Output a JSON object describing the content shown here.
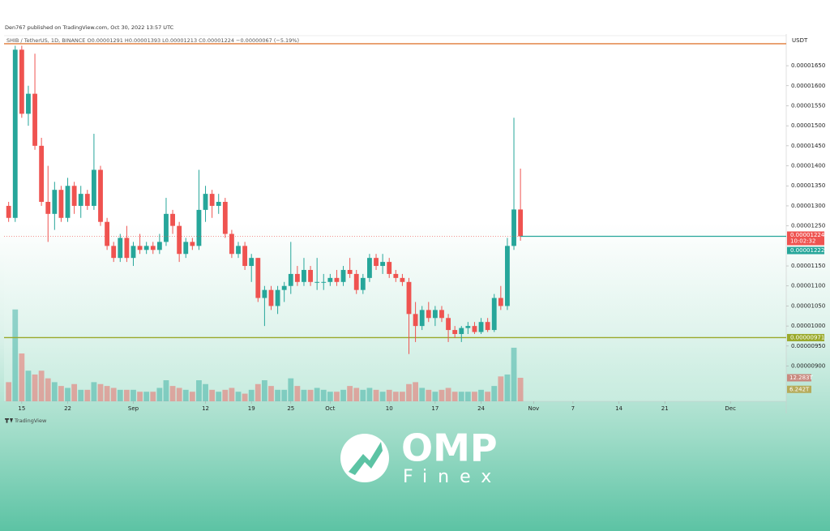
{
  "header": {
    "publisher": "Den767 published on TradingView.com, Oct 30, 2022 13:57 UTC",
    "legend": "SHIB / TetherUS, 1D, BINANCE  O0.00001291  H0.00001393  L0.00001213  C0.00001224  −0.00000067 (−5.19%)"
  },
  "chart_data": {
    "type": "candlestick",
    "currency": "USDT",
    "ylim": [
      8.12e-06,
      1.723e-05
    ],
    "xlim": [
      -0.7,
      118.5
    ],
    "yticks": [
      {
        "value": 1.65e-05,
        "label": "0.00001650"
      },
      {
        "value": 1.6e-05,
        "label": "0.00001600"
      },
      {
        "value": 1.55e-05,
        "label": "0.00001550"
      },
      {
        "value": 1.5e-05,
        "label": "0.00001500"
      },
      {
        "value": 1.45e-05,
        "label": "0.00001450"
      },
      {
        "value": 1.4e-05,
        "label": "0.00001400"
      },
      {
        "value": 1.35e-05,
        "label": "0.00001350"
      },
      {
        "value": 1.3e-05,
        "label": "0.00001300"
      },
      {
        "value": 1.25e-05,
        "label": "0.00001250"
      },
      {
        "value": 1.15e-05,
        "label": "0.00001150"
      },
      {
        "value": 1.1e-05,
        "label": "0.00001100"
      },
      {
        "value": 1.05e-05,
        "label": "0.00001050"
      },
      {
        "value": 1e-05,
        "label": "0.00001000"
      },
      {
        "value": 9.5e-06,
        "label": "0.00000950"
      },
      {
        "value": 9e-06,
        "label": "0.00000900"
      }
    ],
    "xticks": [
      {
        "value": 2,
        "label": "15"
      },
      {
        "value": 9,
        "label": "22"
      },
      {
        "value": 19,
        "label": "Sep"
      },
      {
        "value": 30,
        "label": "12"
      },
      {
        "value": 37,
        "label": "19"
      },
      {
        "value": 43,
        "label": "25"
      },
      {
        "value": 49,
        "label": "Oct"
      },
      {
        "value": 58,
        "label": "10"
      },
      {
        "value": 65,
        "label": "17"
      },
      {
        "value": 72,
        "label": "24"
      },
      {
        "value": 80,
        "label": "Nov"
      },
      {
        "value": 86,
        "label": "7"
      },
      {
        "value": 93,
        "label": "14"
      },
      {
        "value": 100,
        "label": "21"
      },
      {
        "value": 110,
        "label": "Dec"
      }
    ],
    "up_color": "#26a69a",
    "down_color": "#ef5350",
    "open": [
      1.3e-05,
      1.27e-05,
      1.69e-05,
      1.53e-05,
      1.58e-05,
      1.45e-05,
      1.31e-05,
      1.28e-05,
      1.34e-05,
      1.27e-05,
      1.35e-05,
      1.3e-05,
      1.33e-05,
      1.3e-05,
      1.39e-05,
      1.26e-05,
      1.2e-05,
      1.17e-05,
      1.22e-05,
      1.17e-05,
      1.2e-05,
      1.19e-05,
      1.2e-05,
      1.19e-05,
      1.21e-05,
      1.28e-05,
      1.25e-05,
      1.18e-05,
      1.21e-05,
      1.2e-05,
      1.29e-05,
      1.33e-05,
      1.3e-05,
      1.31e-05,
      1.23e-05,
      1.18e-05,
      1.2e-05,
      1.15e-05,
      1.17e-05,
      1.07e-05,
      1.09e-05,
      1.05e-05,
      1.09e-05,
      1.1e-05,
      1.13e-05,
      1.11e-05,
      1.14e-05,
      1.11e-05,
      1.11e-05,
      1.11e-05,
      1.12e-05,
      1.11e-05,
      1.14e-05,
      1.13e-05,
      1.09e-05,
      1.12e-05,
      1.17e-05,
      1.15e-05,
      1.16e-05,
      1.13e-05,
      1.12e-05,
      1.11e-05,
      1.03e-05,
      1e-05,
      1.04e-05,
      1.02e-05,
      1.04e-05,
      1.02e-05,
      9.9e-06,
      9.8e-06,
      9.95e-06,
      1e-05,
      9.85e-06,
      1.01e-05,
      9.9e-06,
      1.07e-05,
      1.05e-05,
      1.2e-05,
      1.291e-05
    ],
    "high": [
      1.31e-05,
      1.7e-05,
      1.7e-05,
      1.6e-05,
      1.68e-05,
      1.47e-05,
      1.4e-05,
      1.36e-05,
      1.35e-05,
      1.37e-05,
      1.36e-05,
      1.35e-05,
      1.34e-05,
      1.48e-05,
      1.4e-05,
      1.27e-05,
      1.21e-05,
      1.23e-05,
      1.25e-05,
      1.21e-05,
      1.23e-05,
      1.21e-05,
      1.21e-05,
      1.23e-05,
      1.32e-05,
      1.29e-05,
      1.26e-05,
      1.22e-05,
      1.22e-05,
      1.39e-05,
      1.35e-05,
      1.34e-05,
      1.33e-05,
      1.32e-05,
      1.24e-05,
      1.21e-05,
      1.21e-05,
      1.18e-05,
      1.17e-05,
      1.1e-05,
      1.1e-05,
      1.1e-05,
      1.11e-05,
      1.21e-05,
      1.15e-05,
      1.17e-05,
      1.15e-05,
      1.17e-05,
      1.13e-05,
      1.13e-05,
      1.14e-05,
      1.15e-05,
      1.17e-05,
      1.14e-05,
      1.13e-05,
      1.18e-05,
      1.18e-05,
      1.18e-05,
      1.17e-05,
      1.14e-05,
      1.13e-05,
      1.12e-05,
      1.06e-05,
      1.05e-05,
      1.06e-05,
      1.05e-05,
      1.05e-05,
      1.03e-05,
      1e-05,
      1e-05,
      1.01e-05,
      1.01e-05,
      1.02e-05,
      1.02e-05,
      1.08e-05,
      1.1e-05,
      1.22e-05,
      1.52e-05,
      1.393e-05
    ],
    "low": [
      1.26e-05,
      1.26e-05,
      1.52e-05,
      1.5e-05,
      1.44e-05,
      1.3e-05,
      1.21e-05,
      1.24e-05,
      1.26e-05,
      1.26e-05,
      1.28e-05,
      1.27e-05,
      1.29e-05,
      1.29e-05,
      1.25e-05,
      1.19e-05,
      1.16e-05,
      1.16e-05,
      1.16e-05,
      1.15e-05,
      1.18e-05,
      1.18e-05,
      1.18e-05,
      1.18e-05,
      1.2e-05,
      1.23e-05,
      1.16e-05,
      1.17e-05,
      1.19e-05,
      1.19e-05,
      1.26e-05,
      1.27e-05,
      1.28e-05,
      1.22e-05,
      1.17e-05,
      1.17e-05,
      1.14e-05,
      1.11e-05,
      1.06e-05,
      1e-05,
      1.04e-05,
      1.03e-05,
      1.06e-05,
      1.08e-05,
      1.1e-05,
      1.1e-05,
      1.1e-05,
      1.09e-05,
      1.09e-05,
      1.1e-05,
      1.1e-05,
      1.1e-05,
      1.12e-05,
      1.08e-05,
      1.08e-05,
      1.11e-05,
      1.14e-05,
      1.13e-05,
      1.12e-05,
      1.11e-05,
      1.1e-05,
      9.3e-06,
      9.6e-06,
      9.9e-06,
      1.01e-05,
      1e-05,
      1.01e-05,
      9.6e-06,
      9.7e-06,
      9.6e-06,
      9.8e-06,
      9.8e-06,
      9.8e-06,
      9.85e-06,
      9.85e-06,
      1.04e-05,
      1.04e-05,
      1.19e-05,
      1.213e-05
    ],
    "close": [
      1.27e-05,
      1.69e-05,
      1.53e-05,
      1.58e-05,
      1.45e-05,
      1.31e-05,
      1.28e-05,
      1.34e-05,
      1.27e-05,
      1.35e-05,
      1.3e-05,
      1.33e-05,
      1.3e-05,
      1.39e-05,
      1.26e-05,
      1.2e-05,
      1.17e-05,
      1.22e-05,
      1.17e-05,
      1.2e-05,
      1.19e-05,
      1.2e-05,
      1.19e-05,
      1.21e-05,
      1.28e-05,
      1.25e-05,
      1.18e-05,
      1.21e-05,
      1.2e-05,
      1.29e-05,
      1.33e-05,
      1.3e-05,
      1.31e-05,
      1.23e-05,
      1.18e-05,
      1.2e-05,
      1.15e-05,
      1.17e-05,
      1.07e-05,
      1.09e-05,
      1.05e-05,
      1.09e-05,
      1.1e-05,
      1.13e-05,
      1.11e-05,
      1.14e-05,
      1.11e-05,
      1.11e-05,
      1.11e-05,
      1.12e-05,
      1.11e-05,
      1.14e-05,
      1.13e-05,
      1.09e-05,
      1.12e-05,
      1.17e-05,
      1.15e-05,
      1.16e-05,
      1.13e-05,
      1.12e-05,
      1.11e-05,
      1.03e-05,
      1e-05,
      1.04e-05,
      1.02e-05,
      1.04e-05,
      1.02e-05,
      9.9e-06,
      9.8e-06,
      9.95e-06,
      1e-05,
      9.85e-06,
      1.01e-05,
      9.9e-06,
      1.07e-05,
      1.05e-05,
      1.2e-05,
      1.291e-05,
      1.224e-05
    ],
    "volume": [
      10,
      48,
      25,
      16,
      14,
      16,
      12,
      10,
      8,
      7,
      9,
      6,
      6,
      10,
      9,
      8,
      7,
      6,
      6,
      6,
      5,
      5,
      5,
      7,
      11,
      8,
      7,
      6,
      5,
      11,
      9,
      6,
      5,
      6,
      7,
      5,
      4,
      6,
      9,
      11,
      8,
      6,
      6,
      12,
      8,
      6,
      6,
      7,
      6,
      5,
      5,
      6,
      8,
      7,
      6,
      7,
      6,
      5,
      6,
      5,
      5,
      9,
      10,
      7,
      6,
      5,
      6,
      7,
      5,
      5,
      5,
      5,
      6,
      5,
      8,
      13,
      14,
      28,
      12.283
    ],
    "volume_tags": [
      {
        "value": 12.283,
        "label": "12.283T"
      },
      {
        "value": 6.242,
        "label": "6.242T"
      }
    ],
    "current_price": {
      "value": 1.224e-05,
      "label": "0.00001224"
    },
    "countdown": "10:02:32",
    "second_price": {
      "value": 1.222e-05,
      "label": "0.00001222"
    },
    "support_level": {
      "value": 9.71e-06,
      "label": "0.00000971",
      "color": "#9aa92a"
    },
    "resistance_level": {
      "value": 1.705e-05,
      "color": "#e07b39"
    }
  },
  "footer": {
    "brand": "TradingView"
  },
  "logo": {
    "name": "OMP",
    "sub": "Finex"
  }
}
